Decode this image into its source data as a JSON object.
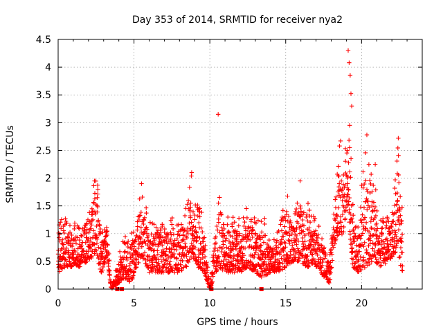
{
  "chart_data": {
    "type": "scatter",
    "title": "Day 353 of 2014, SRMTID for receiver nya2",
    "xlabel": "GPS time / hours",
    "ylabel": "SRMTID / TECUs",
    "xlim": [
      0,
      24
    ],
    "ylim": [
      0,
      4.5
    ],
    "xticks": [
      0,
      5,
      10,
      15,
      20
    ],
    "yticks": [
      0,
      0.5,
      1,
      1.5,
      2,
      2.5,
      3,
      3.5,
      4,
      4.5
    ],
    "xtick_labels": [
      "0",
      "5",
      "10",
      "15",
      "20"
    ],
    "ytick_labels": [
      "0",
      "0.5",
      "1",
      "1.5",
      "2",
      "2.5",
      "3",
      "3.5",
      "4",
      "4.5"
    ],
    "grid": true,
    "marker": "+",
    "series_color": "#ff0000",
    "series": [
      {
        "name": "SRMTID",
        "profile": [
          [
            0.0,
            0.3,
            1.3
          ],
          [
            0.5,
            0.4,
            1.3
          ],
          [
            1.0,
            0.4,
            1.2
          ],
          [
            1.5,
            0.4,
            1.2
          ],
          [
            2.0,
            0.5,
            1.5
          ],
          [
            2.3,
            0.6,
            2.0
          ],
          [
            2.6,
            0.6,
            2.0
          ],
          [
            2.8,
            0.2,
            1.0
          ],
          [
            3.2,
            0.6,
            1.3
          ],
          [
            3.5,
            0.0,
            0.0
          ],
          [
            4.4,
            0.2,
            1.1
          ],
          [
            4.8,
            0.1,
            1.0
          ],
          [
            5.2,
            0.4,
            1.3
          ],
          [
            5.5,
            0.6,
            1.9
          ],
          [
            6.0,
            0.3,
            1.2
          ],
          [
            7.0,
            0.3,
            1.3
          ],
          [
            8.0,
            0.3,
            1.3
          ],
          [
            8.5,
            0.4,
            1.5
          ],
          [
            8.8,
            0.6,
            2.1
          ],
          [
            9.2,
            0.4,
            1.9
          ],
          [
            9.6,
            0.3,
            1.3
          ],
          [
            10.0,
            0.0,
            0.0
          ],
          [
            10.4,
            0.3,
            1.3
          ],
          [
            10.6,
            0.4,
            2.0
          ],
          [
            11.0,
            0.3,
            1.3
          ],
          [
            12.0,
            0.3,
            1.3
          ],
          [
            12.5,
            0.4,
            1.5
          ],
          [
            13.0,
            0.3,
            1.3
          ],
          [
            13.5,
            0.2,
            1.4
          ],
          [
            14.0,
            0.3,
            0.9
          ],
          [
            14.6,
            0.3,
            1.1
          ],
          [
            15.0,
            0.4,
            1.8
          ],
          [
            15.5,
            0.5,
            1.3
          ],
          [
            15.9,
            0.5,
            1.9
          ],
          [
            16.4,
            0.4,
            1.6
          ],
          [
            17.0,
            0.4,
            1.3
          ],
          [
            17.6,
            0.2,
            0.8
          ],
          [
            17.9,
            0.1,
            0.6
          ],
          [
            18.2,
            0.8,
            1.8
          ],
          [
            18.5,
            0.9,
            2.7
          ],
          [
            18.9,
            1.0,
            2.4
          ],
          [
            19.1,
            1.5,
            4.3
          ],
          [
            19.4,
            0.4,
            1.6
          ],
          [
            19.8,
            0.3,
            1.3
          ],
          [
            20.3,
            0.4,
            2.8
          ],
          [
            20.8,
            0.5,
            2.2
          ],
          [
            21.2,
            0.4,
            1.4
          ],
          [
            21.8,
            0.5,
            1.3
          ],
          [
            22.1,
            0.6,
            1.6
          ],
          [
            22.4,
            0.7,
            2.7
          ],
          [
            22.7,
            0.2,
            1.4
          ]
        ],
        "highlights": [
          [
            10.55,
            3.15
          ],
          [
            19.12,
            4.3
          ],
          [
            19.18,
            4.08
          ],
          [
            19.25,
            3.85
          ],
          [
            19.3,
            3.52
          ],
          [
            19.35,
            3.3
          ],
          [
            19.22,
            2.95
          ],
          [
            20.35,
            2.78
          ],
          [
            22.42,
            2.72
          ],
          [
            18.62,
            2.67
          ],
          [
            20.9,
            2.25
          ],
          [
            8.8,
            2.1
          ],
          [
            2.4,
            1.95
          ],
          [
            15.95,
            1.95
          ],
          [
            5.5,
            1.9
          ]
        ],
        "zeros": [
          3.9,
          4.2,
          10.1,
          13.4
        ]
      }
    ]
  }
}
